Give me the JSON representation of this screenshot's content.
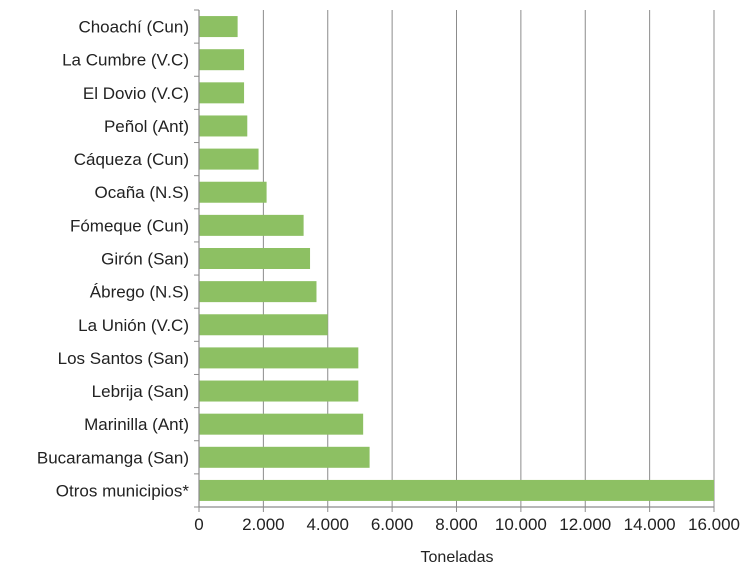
{
  "chart_data": {
    "type": "bar",
    "orientation": "horizontal",
    "categories": [
      "Choachí (Cun)",
      "La Cumbre (V.C)",
      "El Dovio (V.C)",
      "Peñol (Ant)",
      "Cáqueza (Cun)",
      "Ocaña (N.S)",
      "Fómeque (Cun)",
      "Girón (San)",
      "Ábrego (N.S)",
      "La Unión (V.C)",
      "Los Santos (San)",
      "Lebrija (San)",
      "Marinilla (Ant)",
      "Bucaramanga (San)",
      "Otros municipios*"
    ],
    "values": [
      1200,
      1400,
      1400,
      1500,
      1850,
      2100,
      3250,
      3450,
      3650,
      4000,
      4950,
      4950,
      5100,
      5300,
      16000
    ],
    "xlabel": "Toneladas",
    "ylabel": "",
    "xlim": [
      0,
      16000
    ],
    "xticks": [
      0,
      2000,
      4000,
      6000,
      8000,
      10000,
      12000,
      14000,
      16000
    ],
    "xtick_labels": [
      "0",
      "2.000",
      "4.000",
      "6.000",
      "8.000",
      "10.000",
      "12.000",
      "14.000",
      "16.000"
    ],
    "grid": true,
    "bar_color": "#8dc063"
  }
}
